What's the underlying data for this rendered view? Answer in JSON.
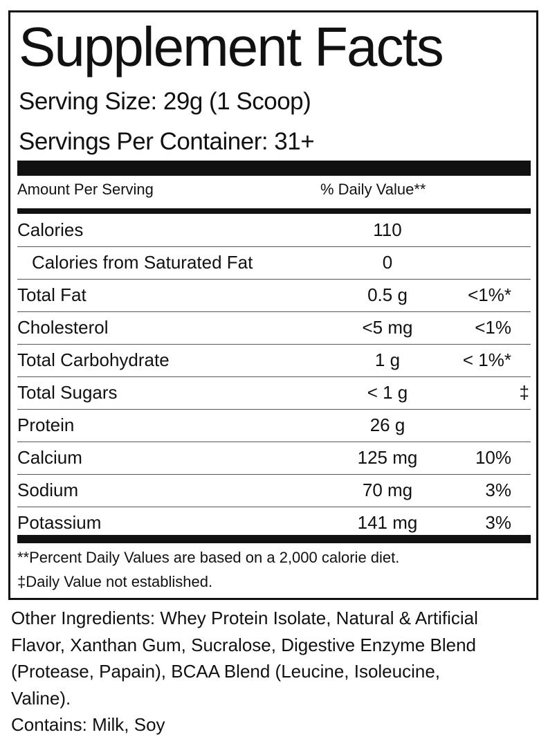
{
  "title": "Supplement Facts",
  "serving_size": "Serving Size: 29g (1 Scoop)",
  "servings_per_container": "Servings Per Container: 31+",
  "header": {
    "amount": "Amount Per Serving",
    "daily_value": "% Daily Value**"
  },
  "rows": [
    {
      "name": "Calories",
      "amount": "110",
      "dv": ""
    },
    {
      "name": "Calories from Saturated Fat",
      "amount": "0",
      "dv": ""
    },
    {
      "name": "Total Fat",
      "amount": "0.5 g",
      "dv": "<1%*"
    },
    {
      "name": "Cholesterol",
      "amount": "<5 mg",
      "dv": "<1%"
    },
    {
      "name": "Total Carbohydrate",
      "amount": "1 g",
      "dv": "< 1%*"
    },
    {
      "name": "Total Sugars",
      "amount": "< 1 g",
      "dv": "‡"
    },
    {
      "name": "Protein",
      "amount": "26 g",
      "dv": ""
    },
    {
      "name": "Calcium",
      "amount": "125 mg",
      "dv": "10%"
    },
    {
      "name": "Sodium",
      "amount": "70 mg",
      "dv": "3%"
    },
    {
      "name": "Potassium",
      "amount": "141 mg",
      "dv": "3%"
    }
  ],
  "footnotes": [
    "**Percent Daily Values are based on a 2,000 calorie diet.",
    "‡Daily Value not established."
  ],
  "ingredients_lines": [
    "Other Ingredients: Whey Protein Isolate, Natural & Artificial",
    "Flavor, Xanthan Gum, Sucralose, Digestive Enzyme Blend",
    "(Protease, Papain), BCAA Blend (Leucine, Isoleucine,",
    "Valine).",
    "Contains: Milk, Soy"
  ]
}
